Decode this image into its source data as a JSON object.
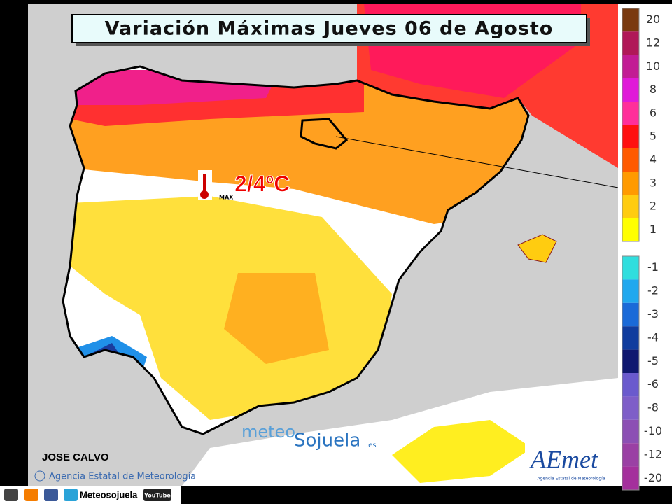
{
  "header": {
    "title": "Variación Máximas Jueves 06 de Agosto"
  },
  "annotation": {
    "max_label": "MAX",
    "range": "2/4ºC"
  },
  "legend": {
    "warm": [
      {
        "value": 20,
        "color": "#7a3a10"
      },
      {
        "value": 12,
        "color": "#b01858"
      },
      {
        "value": 10,
        "color": "#c21c94"
      },
      {
        "value": 8,
        "color": "#e01ad8"
      },
      {
        "value": 6,
        "color": "#ff2f9a"
      },
      {
        "value": 5,
        "color": "#ff1010"
      },
      {
        "value": 4,
        "color": "#ff5a00"
      },
      {
        "value": 3,
        "color": "#ff9a00"
      },
      {
        "value": 2,
        "color": "#ffcc10"
      },
      {
        "value": 1,
        "color": "#ffff00"
      }
    ],
    "cold": [
      {
        "value": -1,
        "color": "#30dede"
      },
      {
        "value": -2,
        "color": "#20a8ee"
      },
      {
        "value": -3,
        "color": "#1a6ad8"
      },
      {
        "value": -4,
        "color": "#103c9e"
      },
      {
        "value": -5,
        "color": "#101870"
      },
      {
        "value": -6,
        "color": "#6a5acd"
      },
      {
        "value": -8,
        "color": "#7e5ec8"
      },
      {
        "value": -10,
        "color": "#8c50b4"
      },
      {
        "value": -12,
        "color": "#9a40a4"
      },
      {
        "value": -20,
        "color": "#a4309c"
      }
    ]
  },
  "credits": {
    "author": "JOSE CALVO",
    "source": "Agencia Estatal de Meteorología",
    "watermark": [
      "meteo",
      "Sojuela",
      ".es"
    ],
    "logo": "AEmet",
    "logo_caption": "Agencia Estatal de Meteorología"
  },
  "footer": {
    "social": "Meteosojuela",
    "youtube": "YouTube"
  }
}
